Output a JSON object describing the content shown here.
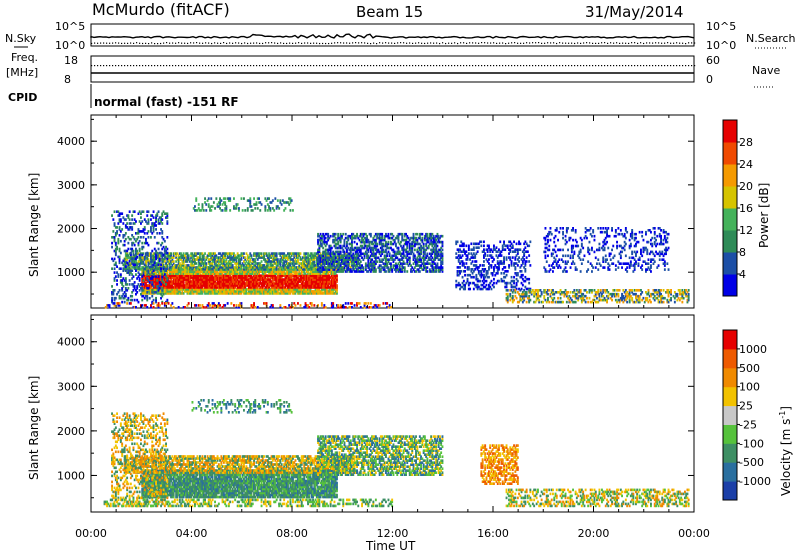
{
  "header": {
    "station": "McMurdo (fitACF)",
    "beam": "Beam 15",
    "date": "31/May/2014"
  },
  "top_panels": {
    "nsky_label": "N.Sky",
    "nsky_ticks": [
      "10^5",
      "10^0"
    ],
    "nsearch_label": "N.Search",
    "nsearch_ticks": [
      "10^5",
      "10^0"
    ],
    "freq_label": "Freq.",
    "freq_unit": "[MHz]",
    "freq_ticks": [
      "18",
      "8"
    ],
    "nave_label": "Nave",
    "nave_ticks": [
      "60",
      "0"
    ],
    "cpid_label": "CPID",
    "cpid_text": "normal (fast) -151 RF"
  },
  "chart_data": [
    {
      "type": "heatmap",
      "name": "power",
      "ylabel": "Slant Range [km]",
      "ylim": [
        180,
        4600
      ],
      "yticks": [
        "4000",
        "3000",
        "2000",
        "1000"
      ],
      "xlim_hours": [
        0,
        24
      ],
      "colorbar": {
        "label": "Power [dB]",
        "ticks": [
          "28",
          "24",
          "20",
          "16",
          "12",
          "8",
          "4"
        ],
        "range": [
          0,
          32
        ],
        "colors": [
          "#0000e6",
          "#1c4fa6",
          "#2e8b57",
          "#44b25a",
          "#d6c400",
          "#f59a00",
          "#f04a00",
          "#e60000"
        ]
      }
    },
    {
      "type": "heatmap",
      "name": "velocity",
      "ylabel": "Slant Range [km]",
      "xlabel": "Time UT",
      "ylim": [
        180,
        4600
      ],
      "yticks": [
        "4000",
        "3000",
        "2000",
        "1000"
      ],
      "xticks": [
        "00:00",
        "04:00",
        "08:00",
        "12:00",
        "16:00",
        "20:00",
        "00:00"
      ],
      "xlim_hours": [
        0,
        24
      ],
      "colorbar": {
        "label": "Velocity [m s",
        "label_sup": "-1",
        "label_end": "]",
        "ticks": [
          "1000",
          "500",
          "100",
          "25",
          "-25",
          "-100",
          "-500",
          "-1000"
        ],
        "colors": [
          "#1b3fa8",
          "#2a6f9f",
          "#3e8f64",
          "#56c23c",
          "#c8c8c8",
          "#f2c200",
          "#f08a00",
          "#ee5a00",
          "#e60000"
        ]
      }
    }
  ]
}
